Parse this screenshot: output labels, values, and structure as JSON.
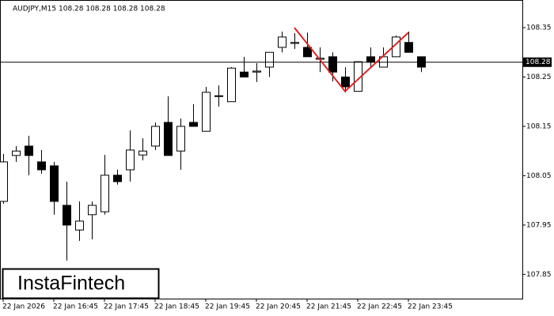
{
  "chart_data": {
    "type": "candlestick",
    "title": "AUDJPY,M15  108.28 108.28 108.28 108.28",
    "logo": "InstaFintech",
    "categories": [
      "22 Jan 2026",
      null,
      null,
      null,
      "22 Jan 16:45",
      null,
      null,
      null,
      "22 Jan 17:45",
      null,
      null,
      null,
      "22 Jan 18:45",
      null,
      null,
      null,
      "22 Jan 19:45",
      null,
      null,
      null,
      "22 Jan 20:45",
      null,
      null,
      null,
      "22 Jan 21:45",
      null,
      null,
      null,
      "22 Jan 22:45",
      null,
      null,
      null,
      "22 Jan 23:45",
      null
    ],
    "open": [
      107.998,
      108.091,
      108.11,
      108.078,
      108.07,
      107.99,
      107.94,
      107.971,
      107.977,
      108.051,
      108.062,
      108.092,
      108.11,
      108.158,
      108.1,
      108.158,
      108.14,
      108.211,
      108.2,
      108.26,
      108.26,
      108.27,
      108.31,
      108.318,
      108.31,
      108.286,
      108.291,
      108.25,
      108.221,
      108.291,
      108.27,
      108.291,
      108.32,
      108.291
    ],
    "high": [
      108.094,
      108.11,
      108.131,
      108.102,
      108.078,
      108.038,
      107.998,
      107.998,
      108.092,
      108.062,
      108.142,
      108.126,
      108.158,
      108.211,
      108.166,
      108.195,
      108.23,
      108.233,
      108.27,
      108.291,
      108.278,
      108.3,
      108.342,
      108.339,
      108.34,
      108.31,
      108.3,
      108.27,
      108.281,
      108.31,
      108.31,
      108.334,
      108.342,
      108.291
    ],
    "low": [
      107.993,
      108.078,
      108.051,
      108.054,
      107.971,
      107.878,
      107.918,
      107.921,
      107.971,
      108.032,
      108.038,
      108.081,
      108.102,
      108.091,
      108.062,
      108.15,
      108.14,
      108.19,
      108.2,
      108.25,
      108.24,
      108.25,
      108.3,
      108.307,
      108.291,
      108.26,
      108.241,
      108.219,
      108.221,
      108.27,
      108.27,
      108.291,
      108.3,
      108.26
    ],
    "close": [
      108.078,
      108.1,
      108.091,
      108.062,
      107.998,
      107.95,
      107.958,
      107.99,
      108.051,
      108.038,
      108.102,
      108.1,
      108.15,
      108.091,
      108.15,
      108.15,
      108.219,
      108.212,
      108.268,
      108.25,
      108.262,
      108.3,
      108.331,
      108.32,
      108.291,
      108.288,
      108.26,
      108.23,
      108.281,
      108.28,
      108.291,
      108.331,
      108.3,
      108.27
    ],
    "current_price": 108.28,
    "pattern": {
      "color": "#e02020",
      "x": [
        23,
        27,
        32
      ],
      "y": [
        108.35,
        108.221,
        108.34
      ]
    },
    "xlim": [
      -0.25,
      41
    ],
    "ylim": [
      107.801,
      108.406
    ],
    "yticks": [
      107.85,
      107.95,
      108.05,
      108.15,
      108.25,
      108.35
    ]
  }
}
